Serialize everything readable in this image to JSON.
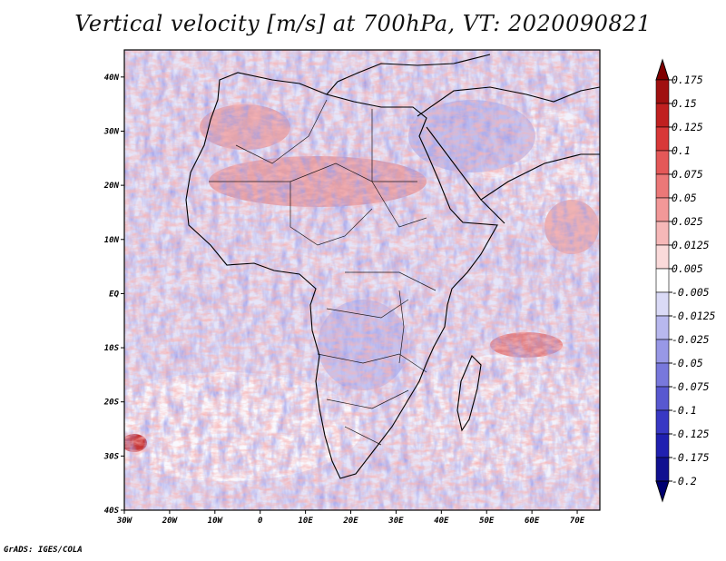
{
  "title": "Vertical velocity [m/s] at 700hPa, VT: 2020090821",
  "credit": "GrADS: IGES/COLA",
  "map": {
    "lon_range": [
      -30,
      75
    ],
    "lat_range": [
      -40,
      45
    ],
    "lat_ticks": [
      {
        "value": 40,
        "label": "40N"
      },
      {
        "value": 30,
        "label": "30N"
      },
      {
        "value": 20,
        "label": "20N"
      },
      {
        "value": 10,
        "label": "10N"
      },
      {
        "value": 0,
        "label": "EQ"
      },
      {
        "value": -10,
        "label": "10S"
      },
      {
        "value": -20,
        "label": "20S"
      },
      {
        "value": -30,
        "label": "30S"
      },
      {
        "value": -40,
        "label": "40S"
      }
    ],
    "lon_ticks": [
      {
        "value": -30,
        "label": "30W"
      },
      {
        "value": -20,
        "label": "20W"
      },
      {
        "value": -10,
        "label": "10W"
      },
      {
        "value": 0,
        "label": "0"
      },
      {
        "value": 10,
        "label": "10E"
      },
      {
        "value": 20,
        "label": "20E"
      },
      {
        "value": 30,
        "label": "30E"
      },
      {
        "value": 40,
        "label": "40E"
      },
      {
        "value": 50,
        "label": "50E"
      },
      {
        "value": 60,
        "label": "60E"
      },
      {
        "value": 70,
        "label": "70E"
      }
    ],
    "colors": {
      "background": "#ffffff",
      "strong_positive": "#b01818",
      "weak_positive": "#f0a8a8",
      "strong_negative": "#4848c8",
      "weak_negative": "#c8c8f0",
      "coastline": "#000000"
    }
  },
  "colorbar": {
    "labels": [
      "0.175",
      "0.15",
      "0.125",
      "0.1",
      "0.075",
      "0.05",
      "0.025",
      "0.0125",
      "0.005",
      "-0.005",
      "-0.0125",
      "-0.025",
      "-0.05",
      "-0.075",
      "-0.1",
      "-0.125",
      "-0.175",
      "-0.2"
    ],
    "colors": [
      "#800000",
      "#a01010",
      "#c02020",
      "#d83838",
      "#e45858",
      "#ec7878",
      "#f29898",
      "#f6b8b8",
      "#fadada",
      "#ffffff",
      "#dadaf6",
      "#b8b8ee",
      "#9898e6",
      "#7878dc",
      "#5858d0",
      "#3838c4",
      "#2020b0",
      "#101090",
      "#000070"
    ]
  }
}
